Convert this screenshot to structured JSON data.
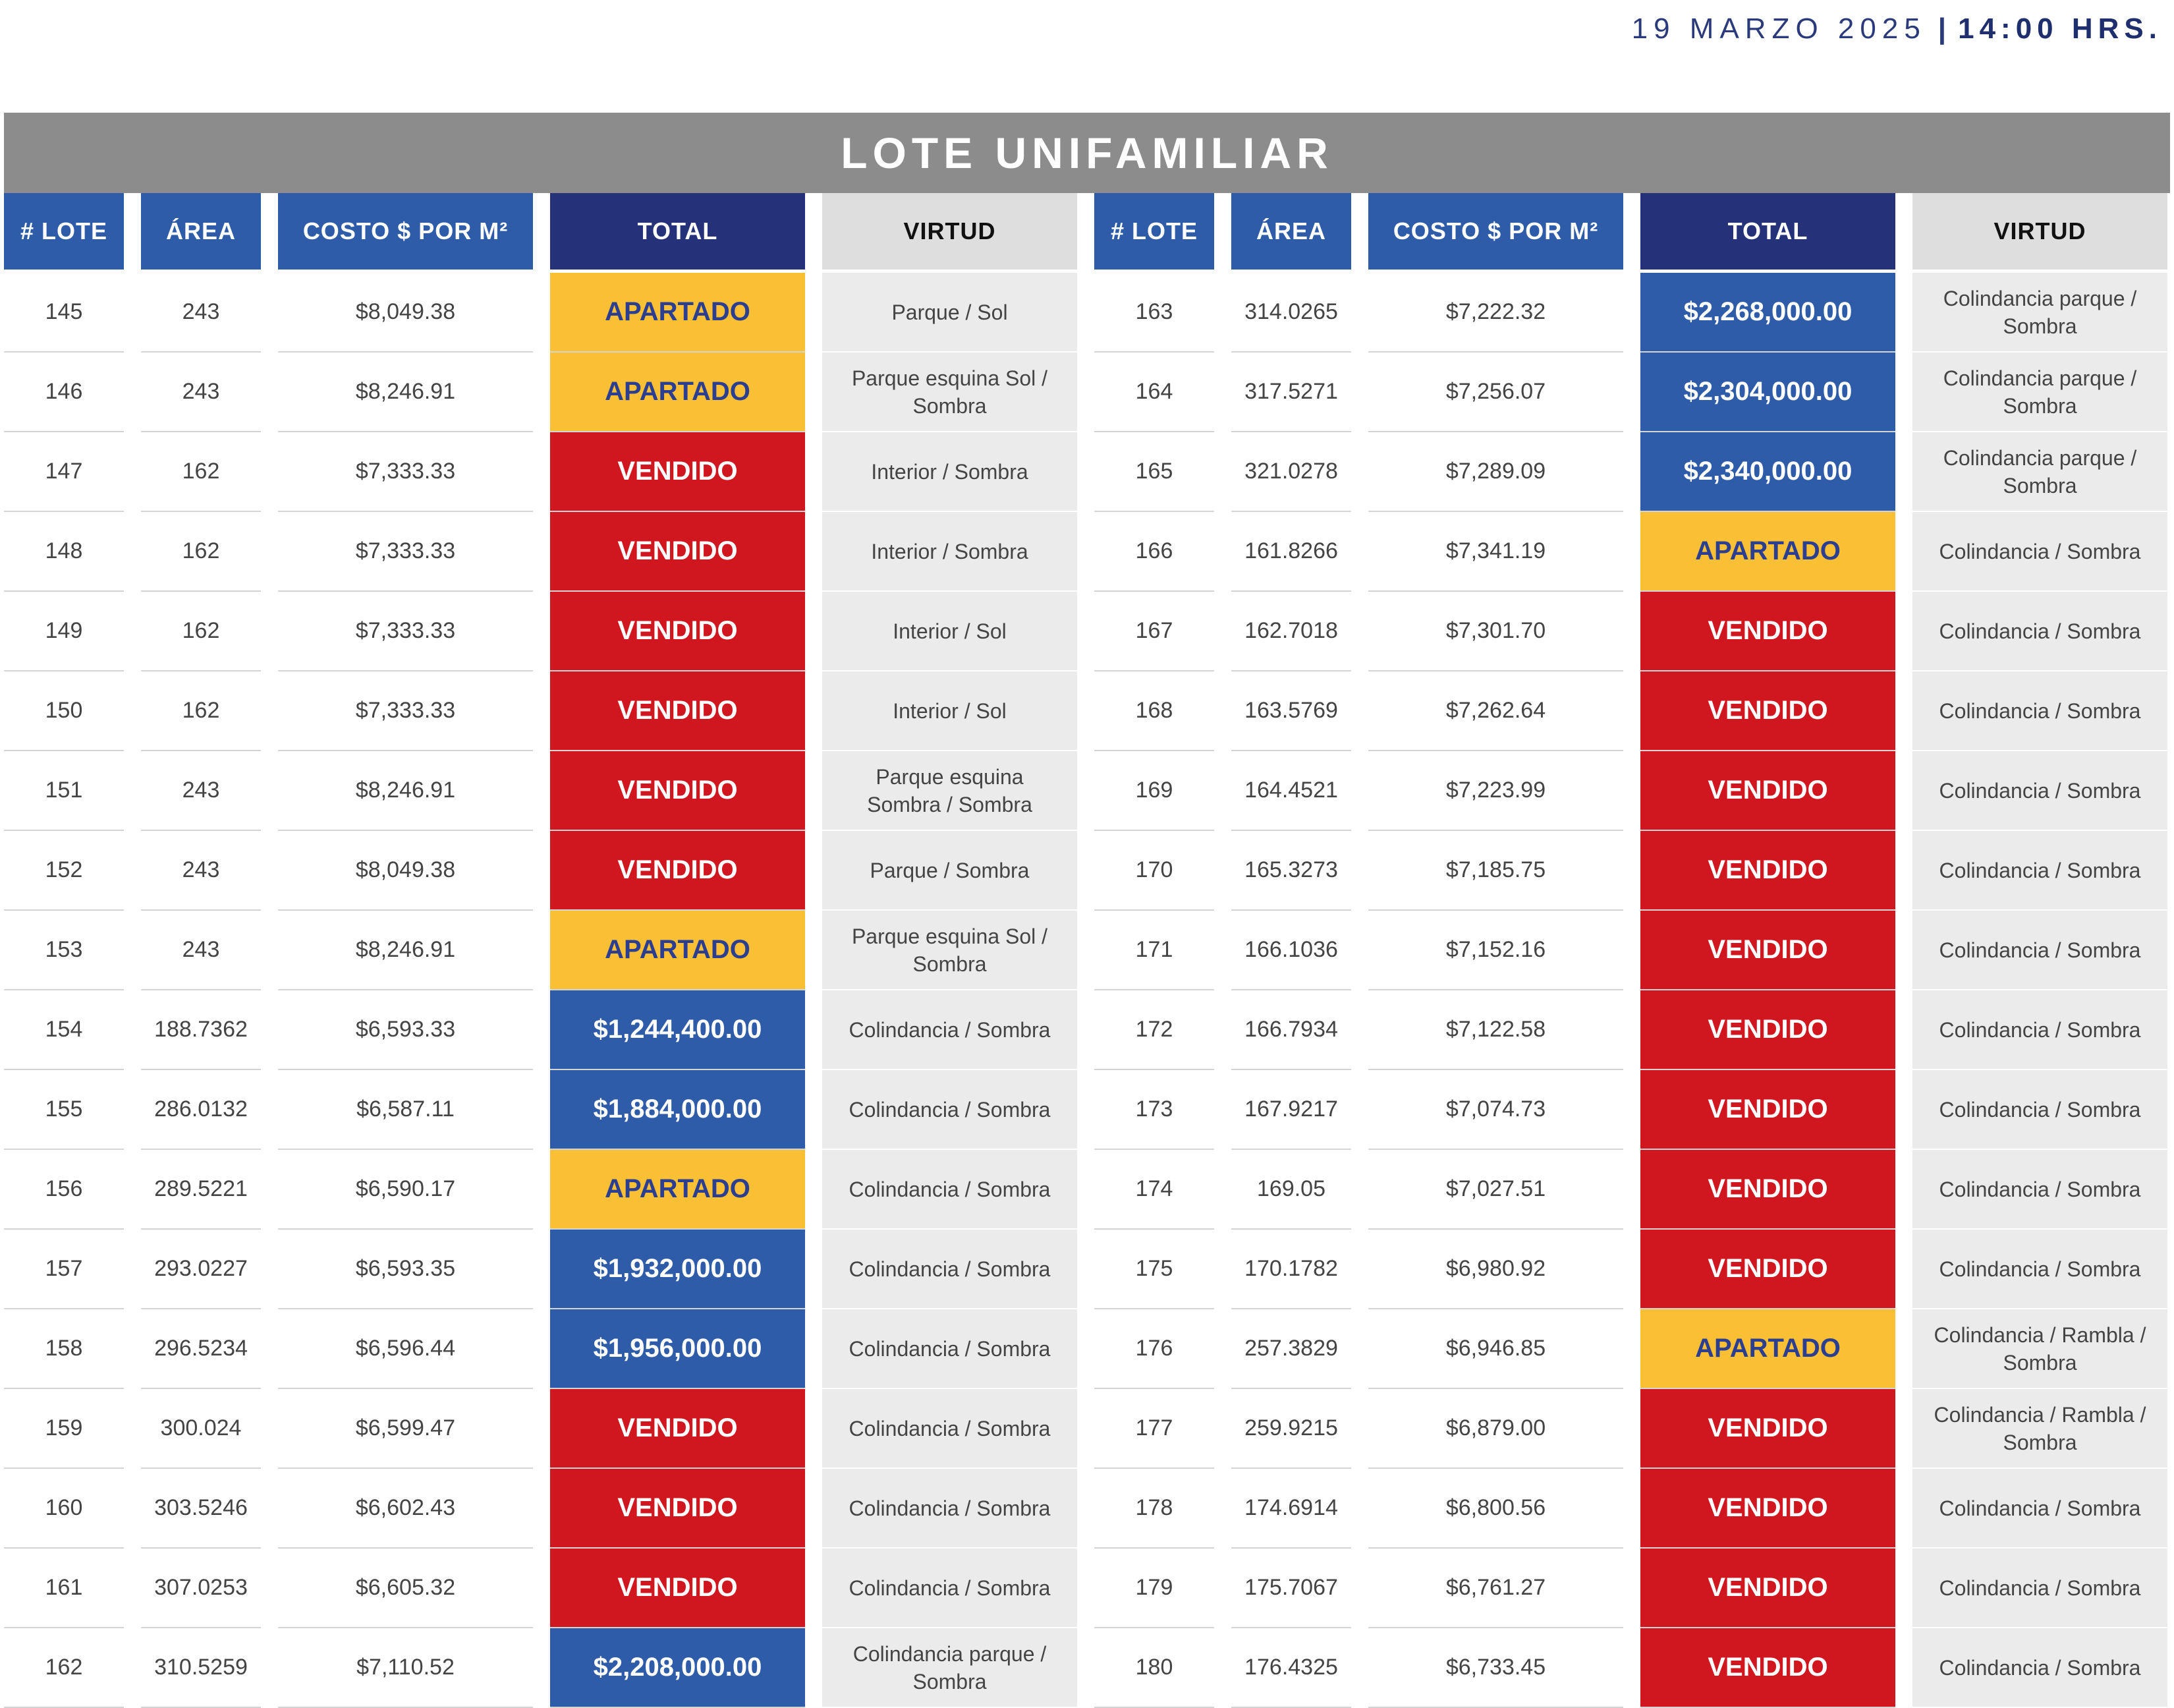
{
  "header": {
    "date": "19 MARZO 2025",
    "separator": "|",
    "time": "14:00 HRS."
  },
  "title": "LOTE UNIFAMILIAR",
  "columns": [
    "# LOTE",
    "ÁREA",
    "COSTO $ POR M²",
    "TOTAL",
    "VIRTUD",
    "# LOTE",
    "ÁREA",
    "COSTO $ POR M²",
    "TOTAL",
    "VIRTUD"
  ],
  "colors": {
    "vendido": "#d0161f",
    "apartado": "#f9c036",
    "precio": "#2e5ca8",
    "header_blue": "#2e5ca8",
    "header_navy": "#25327a",
    "banner": "#8c8c8c"
  },
  "rows": [
    {
      "left": {
        "lote": "145",
        "area": "243",
        "costo": "$8,049.38",
        "total": "APARTADO",
        "status": "apartado",
        "virtud": "Parque / Sol"
      },
      "right": {
        "lote": "163",
        "area": "314.0265",
        "costo": "$7,222.32",
        "total": "$2,268,000.00",
        "status": "precio",
        "virtud": "Colindancia parque / Sombra"
      }
    },
    {
      "left": {
        "lote": "146",
        "area": "243",
        "costo": "$8,246.91",
        "total": "APARTADO",
        "status": "apartado",
        "virtud": "Parque esquina Sol / Sombra"
      },
      "right": {
        "lote": "164",
        "area": "317.5271",
        "costo": "$7,256.07",
        "total": "$2,304,000.00",
        "status": "precio",
        "virtud": "Colindancia parque / Sombra"
      }
    },
    {
      "left": {
        "lote": "147",
        "area": "162",
        "costo": "$7,333.33",
        "total": "VENDIDO",
        "status": "vendido",
        "virtud": "Interior / Sombra"
      },
      "right": {
        "lote": "165",
        "area": "321.0278",
        "costo": "$7,289.09",
        "total": "$2,340,000.00",
        "status": "precio",
        "virtud": "Colindancia parque / Sombra"
      }
    },
    {
      "left": {
        "lote": "148",
        "area": "162",
        "costo": "$7,333.33",
        "total": "VENDIDO",
        "status": "vendido",
        "virtud": "Interior / Sombra"
      },
      "right": {
        "lote": "166",
        "area": "161.8266",
        "costo": "$7,341.19",
        "total": "APARTADO",
        "status": "apartado",
        "virtud": "Colindancia / Sombra"
      }
    },
    {
      "left": {
        "lote": "149",
        "area": "162",
        "costo": "$7,333.33",
        "total": "VENDIDO",
        "status": "vendido",
        "virtud": "Interior / Sol"
      },
      "right": {
        "lote": "167",
        "area": "162.7018",
        "costo": "$7,301.70",
        "total": "VENDIDO",
        "status": "vendido",
        "virtud": "Colindancia / Sombra"
      }
    },
    {
      "left": {
        "lote": "150",
        "area": "162",
        "costo": "$7,333.33",
        "total": "VENDIDO",
        "status": "vendido",
        "virtud": "Interior / Sol"
      },
      "right": {
        "lote": "168",
        "area": "163.5769",
        "costo": "$7,262.64",
        "total": "VENDIDO",
        "status": "vendido",
        "virtud": "Colindancia / Sombra"
      }
    },
    {
      "left": {
        "lote": "151",
        "area": "243",
        "costo": "$8,246.91",
        "total": "VENDIDO",
        "status": "vendido",
        "virtud": "Parque esquina Sombra / Sombra"
      },
      "right": {
        "lote": "169",
        "area": "164.4521",
        "costo": "$7,223.99",
        "total": "VENDIDO",
        "status": "vendido",
        "virtud": "Colindancia / Sombra"
      }
    },
    {
      "left": {
        "lote": "152",
        "area": "243",
        "costo": "$8,049.38",
        "total": "VENDIDO",
        "status": "vendido",
        "virtud": "Parque / Sombra"
      },
      "right": {
        "lote": "170",
        "area": "165.3273",
        "costo": "$7,185.75",
        "total": "VENDIDO",
        "status": "vendido",
        "virtud": "Colindancia / Sombra"
      }
    },
    {
      "left": {
        "lote": "153",
        "area": "243",
        "costo": "$8,246.91",
        "total": "APARTADO",
        "status": "apartado",
        "virtud": "Parque esquina Sol / Sombra"
      },
      "right": {
        "lote": "171",
        "area": "166.1036",
        "costo": "$7,152.16",
        "total": "VENDIDO",
        "status": "vendido",
        "virtud": "Colindancia / Sombra"
      }
    },
    {
      "left": {
        "lote": "154",
        "area": "188.7362",
        "costo": "$6,593.33",
        "total": "$1,244,400.00",
        "status": "precio",
        "virtud": "Colindancia / Sombra"
      },
      "right": {
        "lote": "172",
        "area": "166.7934",
        "costo": "$7,122.58",
        "total": "VENDIDO",
        "status": "vendido",
        "virtud": "Colindancia / Sombra"
      }
    },
    {
      "left": {
        "lote": "155",
        "area": "286.0132",
        "costo": "$6,587.11",
        "total": "$1,884,000.00",
        "status": "precio",
        "virtud": "Colindancia / Sombra"
      },
      "right": {
        "lote": "173",
        "area": "167.9217",
        "costo": "$7,074.73",
        "total": "VENDIDO",
        "status": "vendido",
        "virtud": "Colindancia / Sombra"
      }
    },
    {
      "left": {
        "lote": "156",
        "area": "289.5221",
        "costo": "$6,590.17",
        "total": "APARTADO",
        "status": "apartado",
        "virtud": "Colindancia / Sombra"
      },
      "right": {
        "lote": "174",
        "area": "169.05",
        "costo": "$7,027.51",
        "total": "VENDIDO",
        "status": "vendido",
        "virtud": "Colindancia / Sombra"
      }
    },
    {
      "left": {
        "lote": "157",
        "area": "293.0227",
        "costo": "$6,593.35",
        "total": "$1,932,000.00",
        "status": "precio",
        "virtud": "Colindancia / Sombra"
      },
      "right": {
        "lote": "175",
        "area": "170.1782",
        "costo": "$6,980.92",
        "total": "VENDIDO",
        "status": "vendido",
        "virtud": "Colindancia / Sombra"
      }
    },
    {
      "left": {
        "lote": "158",
        "area": "296.5234",
        "costo": "$6,596.44",
        "total": "$1,956,000.00",
        "status": "precio",
        "virtud": "Colindancia / Sombra"
      },
      "right": {
        "lote": "176",
        "area": "257.3829",
        "costo": "$6,946.85",
        "total": "APARTADO",
        "status": "apartado",
        "virtud": "Colindancia / Rambla / Sombra"
      }
    },
    {
      "left": {
        "lote": "159",
        "area": "300.024",
        "costo": "$6,599.47",
        "total": "VENDIDO",
        "status": "vendido",
        "virtud": "Colindancia / Sombra"
      },
      "right": {
        "lote": "177",
        "area": "259.9215",
        "costo": "$6,879.00",
        "total": "VENDIDO",
        "status": "vendido",
        "virtud": "Colindancia / Rambla / Sombra"
      }
    },
    {
      "left": {
        "lote": "160",
        "area": "303.5246",
        "costo": "$6,602.43",
        "total": "VENDIDO",
        "status": "vendido",
        "virtud": "Colindancia / Sombra"
      },
      "right": {
        "lote": "178",
        "area": "174.6914",
        "costo": "$6,800.56",
        "total": "VENDIDO",
        "status": "vendido",
        "virtud": "Colindancia / Sombra"
      }
    },
    {
      "left": {
        "lote": "161",
        "area": "307.0253",
        "costo": "$6,605.32",
        "total": "VENDIDO",
        "status": "vendido",
        "virtud": "Colindancia / Sombra"
      },
      "right": {
        "lote": "179",
        "area": "175.7067",
        "costo": "$6,761.27",
        "total": "VENDIDO",
        "status": "vendido",
        "virtud": "Colindancia / Sombra"
      }
    },
    {
      "left": {
        "lote": "162",
        "area": "310.5259",
        "costo": "$7,110.52",
        "total": "$2,208,000.00",
        "status": "precio",
        "virtud": "Colindancia parque / Sombra"
      },
      "right": {
        "lote": "180",
        "area": "176.4325",
        "costo": "$6,733.45",
        "total": "VENDIDO",
        "status": "vendido",
        "virtud": "Colindancia / Sombra"
      }
    }
  ]
}
